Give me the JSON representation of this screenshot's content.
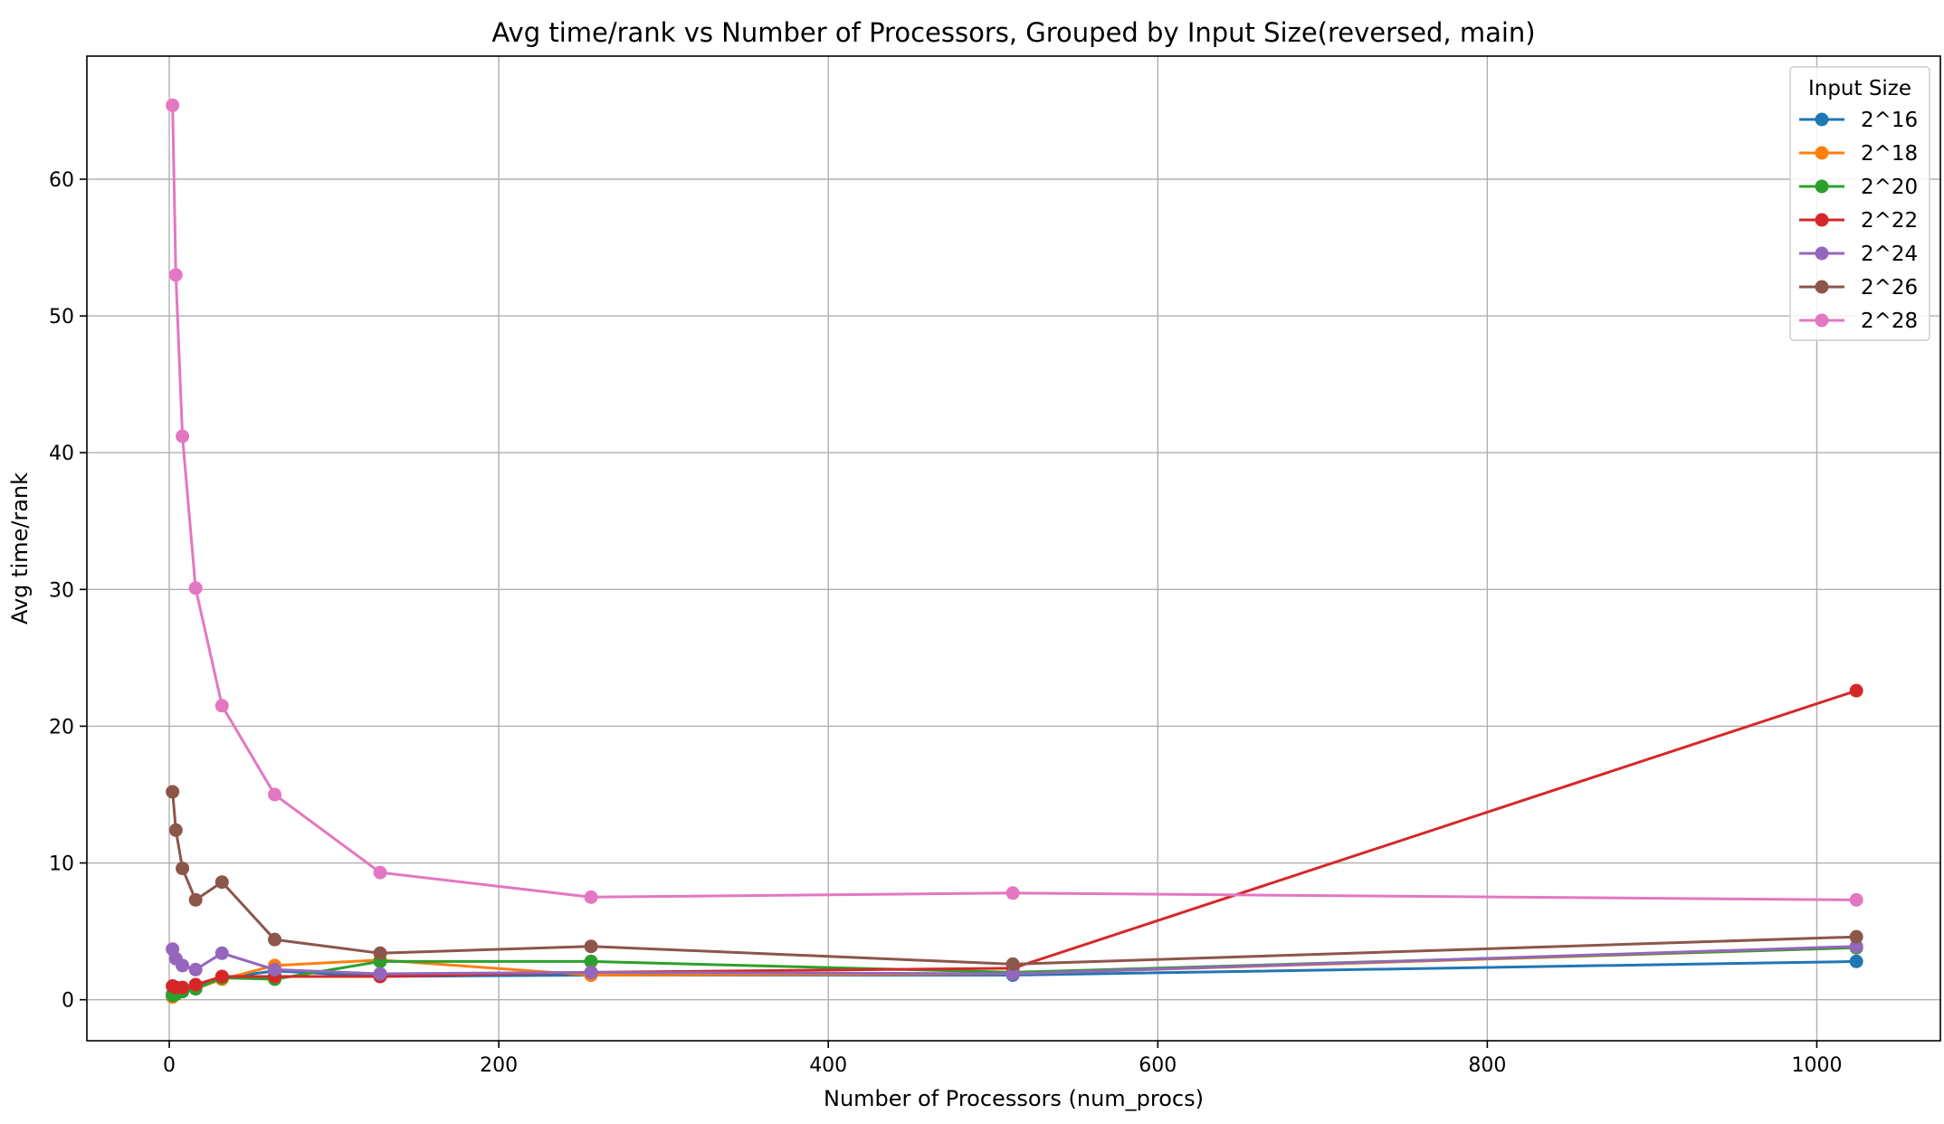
{
  "chart_data": {
    "type": "line",
    "title": "Avg time/rank vs Number of Processors, Grouped by Input Size(reversed, main)",
    "xlabel": "Number of Processors (num_procs)",
    "ylabel": "Avg time/rank",
    "xlim": [
      -50,
      1075
    ],
    "ylim": [
      -3,
      69
    ],
    "xticks": [
      0,
      200,
      400,
      600,
      800,
      1000
    ],
    "yticks": [
      0,
      10,
      20,
      30,
      40,
      50,
      60
    ],
    "grid": true,
    "legend": {
      "title": "Input Size",
      "placement": "top-right"
    },
    "series": [
      {
        "name": "2^16",
        "color": "#1f77b4",
        "x": [
          2,
          4,
          8,
          16,
          32,
          64,
          128,
          256,
          512,
          1024
        ],
        "y": [
          0.4,
          0.5,
          0.6,
          0.9,
          1.6,
          2.1,
          1.7,
          1.8,
          1.8,
          2.8
        ]
      },
      {
        "name": "2^18",
        "color": "#ff7f0e",
        "x": [
          2,
          4,
          8,
          16,
          32,
          64,
          128,
          256,
          512,
          1024
        ],
        "y": [
          0.2,
          0.4,
          0.6,
          0.8,
          1.5,
          2.5,
          2.9,
          1.8,
          1.9,
          3.8
        ]
      },
      {
        "name": "2^20",
        "color": "#2ca02c",
        "x": [
          2,
          4,
          8,
          16,
          32,
          64,
          128,
          256,
          512,
          1024
        ],
        "y": [
          0.3,
          0.4,
          0.6,
          0.8,
          1.6,
          1.5,
          2.8,
          2.8,
          2.0,
          3.8
        ]
      },
      {
        "name": "2^22",
        "color": "#d62728",
        "x": [
          2,
          4,
          8,
          16,
          32,
          64,
          128,
          256,
          512,
          1024
        ],
        "y": [
          1.0,
          0.9,
          0.9,
          1.1,
          1.7,
          1.7,
          1.7,
          2.0,
          2.3,
          22.6
        ]
      },
      {
        "name": "2^24",
        "color": "#9467bd",
        "x": [
          2,
          4,
          8,
          16,
          32,
          64,
          128,
          256,
          512,
          1024
        ],
        "y": [
          3.7,
          3.0,
          2.5,
          2.2,
          3.4,
          2.2,
          1.9,
          2.0,
          1.9,
          3.9
        ]
      },
      {
        "name": "2^26",
        "color": "#8c564b",
        "x": [
          2,
          4,
          8,
          16,
          32,
          64,
          128,
          256,
          512,
          1024
        ],
        "y": [
          15.2,
          12.4,
          9.6,
          7.3,
          8.6,
          4.4,
          3.4,
          3.9,
          2.6,
          4.6
        ]
      },
      {
        "name": "2^28",
        "color": "#e377c2",
        "x": [
          2,
          4,
          8,
          16,
          32,
          64,
          128,
          256,
          512,
          1024
        ],
        "y": [
          65.4,
          53.0,
          41.2,
          30.1,
          21.5,
          15.0,
          9.3,
          7.5,
          7.8,
          7.3
        ]
      }
    ]
  }
}
